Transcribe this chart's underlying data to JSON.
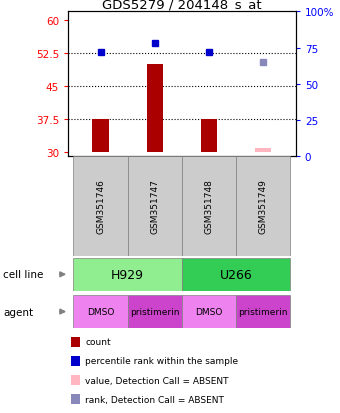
{
  "title": "GDS5279 / 204148_s_at",
  "samples": [
    "GSM351746",
    "GSM351747",
    "GSM351748",
    "GSM351749"
  ],
  "count_values": [
    37.5,
    50.0,
    37.5,
    null
  ],
  "count_base": 30,
  "count_absent_values": [
    null,
    null,
    null,
    30.8
  ],
  "rank_vals_right": [
    72.0,
    78.0,
    72.0,
    null
  ],
  "rank_absent_right": [
    null,
    null,
    null,
    65.0
  ],
  "ylim_left": [
    29,
    62
  ],
  "ylim_right": [
    0,
    100
  ],
  "yticks_left": [
    30,
    37.5,
    45,
    52.5,
    60
  ],
  "yticks_right": [
    0,
    25,
    50,
    75,
    100
  ],
  "ytick_labels_left": [
    "30",
    "37.5",
    "45",
    "52.5",
    "60"
  ],
  "ytick_labels_right": [
    "0",
    "25",
    "50",
    "75",
    "100%"
  ],
  "hlines": [
    37.5,
    45,
    52.5
  ],
  "cell_line_groups": [
    {
      "label": "H929",
      "cols": [
        0,
        1
      ],
      "color": "#90EE90"
    },
    {
      "label": "U266",
      "cols": [
        2,
        3
      ],
      "color": "#33CC55"
    }
  ],
  "agent_groups": [
    {
      "label": "DMSO",
      "col": 0,
      "color": "#EE82EE"
    },
    {
      "label": "pristimerin",
      "col": 1,
      "color": "#CC44CC"
    },
    {
      "label": "DMSO",
      "col": 2,
      "color": "#EE82EE"
    },
    {
      "label": "pristimerin",
      "col": 3,
      "color": "#CC44CC"
    }
  ],
  "bar_color": "#AA0000",
  "bar_width": 0.3,
  "rank_color": "#0000CC",
  "rank_absent_color": "#8888BB",
  "count_absent_color": "#FFB6C1",
  "sample_box_color": "#CCCCCC",
  "legend_items": [
    {
      "color": "#AA0000",
      "label": "count"
    },
    {
      "color": "#0000CC",
      "label": "percentile rank within the sample"
    },
    {
      "color": "#FFB6C1",
      "label": "value, Detection Call = ABSENT"
    },
    {
      "color": "#8888BB",
      "label": "rank, Detection Call = ABSENT"
    }
  ]
}
